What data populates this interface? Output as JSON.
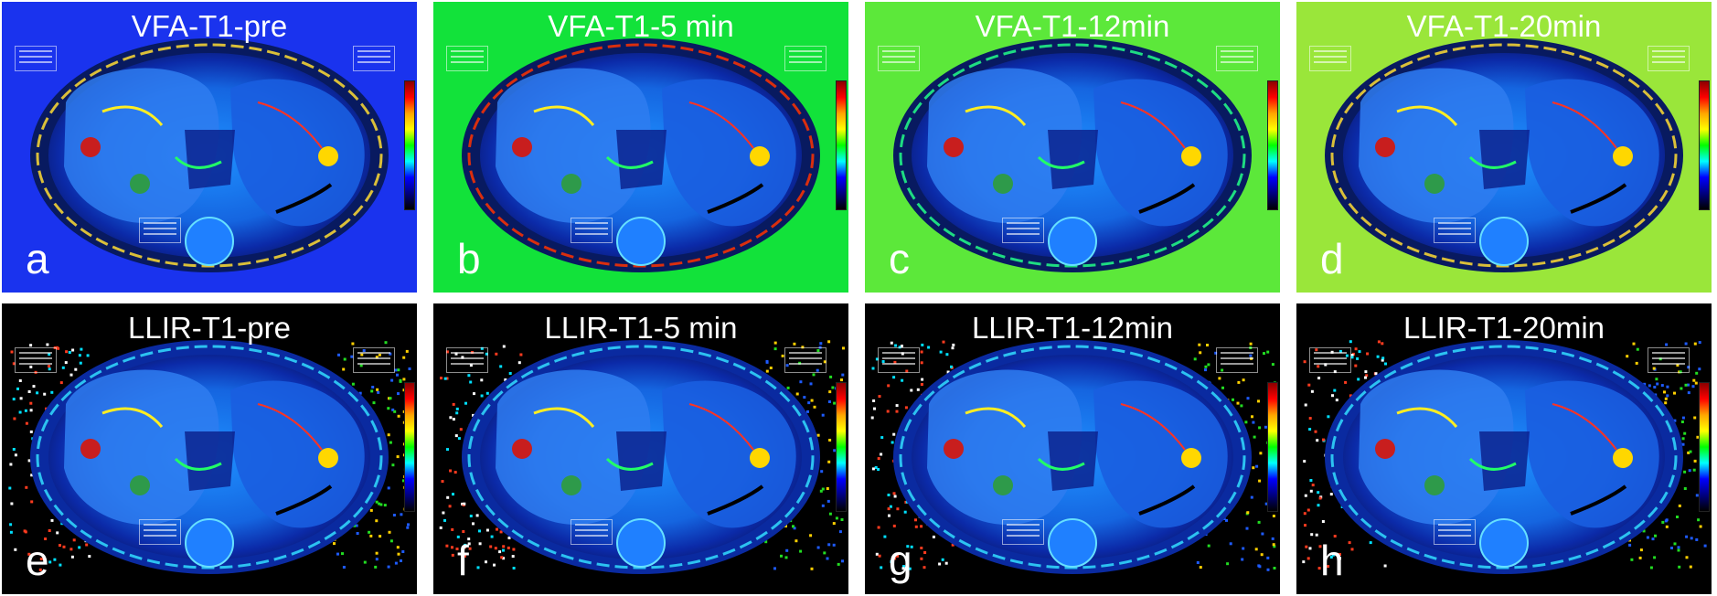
{
  "figure": {
    "rows": [
      {
        "name": "VFA",
        "panels": [
          {
            "title": "VFA-T1-pre",
            "label": "a",
            "background": "#1a33ee"
          },
          {
            "title": "VFA-T1-5 min",
            "label": "b",
            "background": "#12e23a"
          },
          {
            "title": "VFA-T1-12min",
            "label": "c",
            "background": "#5ce83a"
          },
          {
            "title": "VFA-T1-20min",
            "label": "d",
            "background": "#9ae63a"
          }
        ]
      },
      {
        "name": "LLIR",
        "panels": [
          {
            "title": "LLIR-T1-pre",
            "label": "e",
            "background": "#000000"
          },
          {
            "title": "LLIR-T1-5 min",
            "label": "f",
            "background": "#000000"
          },
          {
            "title": "LLIR-T1-12min",
            "label": "g",
            "background": "#000000"
          },
          {
            "title": "LLIR-T1-20min",
            "label": "h",
            "background": "#000000"
          }
        ]
      }
    ],
    "roi_colors": {
      "liver": "#c81e1e",
      "paraspinal": "#2e9a4a",
      "spleen": "#ffd700"
    },
    "colormap": [
      "#8b0000",
      "#ff0000",
      "#ffa500",
      "#ffff00",
      "#00ff00",
      "#00ffff",
      "#0000ff",
      "#000080",
      "#000000"
    ]
  }
}
